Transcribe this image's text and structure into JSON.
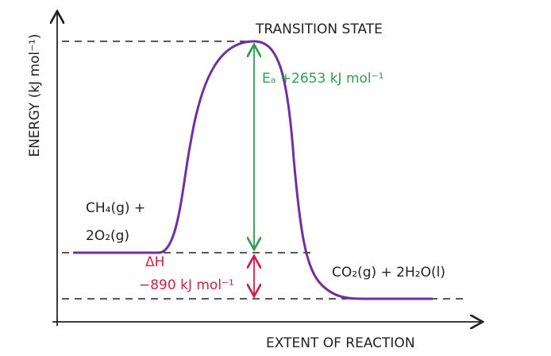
{
  "axes": {
    "y_label": "ENERGY (kJ mol⁻¹)",
    "x_label": "EXTENT OF REACTION"
  },
  "labels": {
    "transition_state": "TRANSITION STATE",
    "activation_energy": "Eₐ +2653 kJ mol⁻¹",
    "enthalpy_symbol": "ΔH",
    "enthalpy_value": "−890 kJ mol⁻¹",
    "reactants_line1": "CH₄(g) +",
    "reactants_line2": "2O₂(g)",
    "products": "CO₂(g) + 2H₂O(l)"
  }
}
